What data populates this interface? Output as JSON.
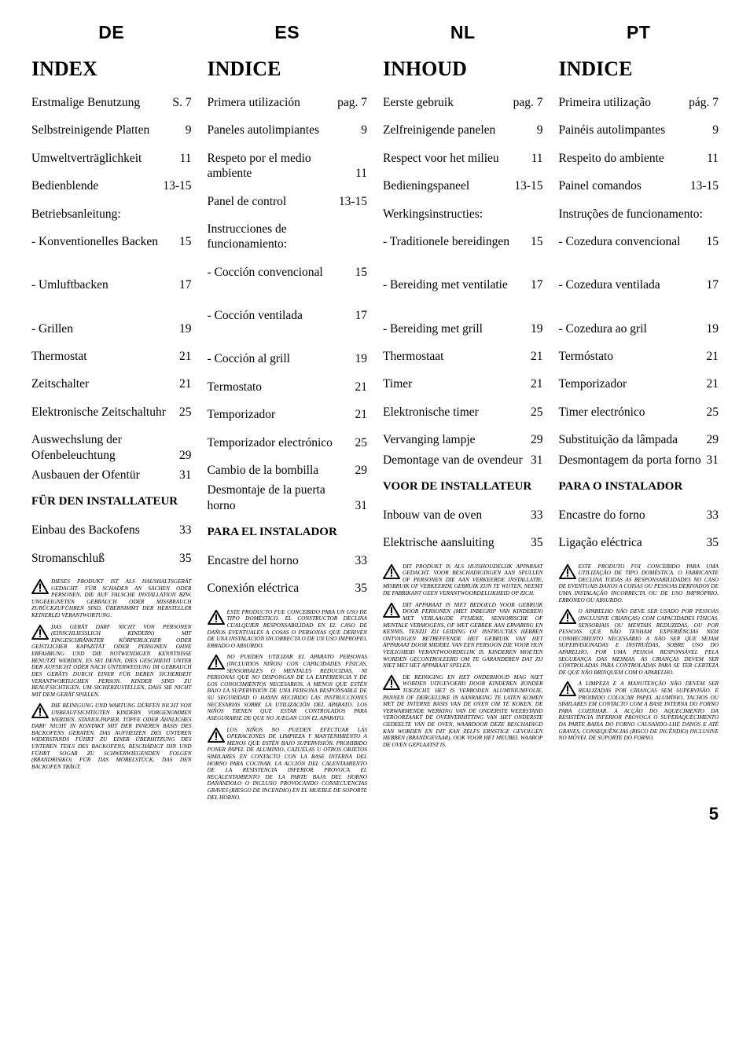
{
  "page_number": "5",
  "langs": {
    "de": {
      "code": "DE",
      "index": "INDEX"
    },
    "es": {
      "code": "ES",
      "index": "INDICE"
    },
    "nl": {
      "code": "NL",
      "index": "INHOUD"
    },
    "pt": {
      "code": "PT",
      "index": "INDICE"
    }
  },
  "rows": {
    "de": [
      {
        "l": "Erstmalige Benutzung",
        "p": "S. 7"
      },
      {
        "l": "Selbstreinigende Platten",
        "p": "9"
      },
      {
        "l": "Umweltverträglichkeit",
        "p": "11"
      },
      {
        "l": "Bedienblende",
        "p": "13-15"
      },
      {
        "l": "Betriebsanleitung:",
        "p": ""
      },
      {
        "l": "- Konventionelles Backen",
        "p": "15"
      },
      {
        "l": "- Umluftbacken",
        "p": "17"
      },
      {
        "l": "- Grillen",
        "p": "19"
      },
      {
        "l": "Thermostat",
        "p": "21"
      },
      {
        "l": "Zeitschalter",
        "p": "21"
      },
      {
        "l": "Elektronische Zeitschaltuhr",
        "p": "25"
      },
      {
        "l": "Auswechslung der Ofenbeleuchtung",
        "p": "29"
      },
      {
        "l": "Ausbauen der Ofentür",
        "p": "31"
      }
    ],
    "es": [
      {
        "l": "Primera utilización",
        "p": "pag. 7"
      },
      {
        "l": "Paneles autolimpiantes",
        "p": "9"
      },
      {
        "l": "Respeto por el medio ambiente",
        "p": "11"
      },
      {
        "l": "Panel de control",
        "p": "13-15"
      },
      {
        "l": "Instrucciones de funcionamiento:",
        "p": ""
      },
      {
        "l": "- Cocción convencional",
        "p": "15"
      },
      {
        "l": "- Cocción ventilada",
        "p": "17"
      },
      {
        "l": "- Cocción al grill",
        "p": "19"
      },
      {
        "l": "Termostato",
        "p": "21"
      },
      {
        "l": "Temporizador",
        "p": "21"
      },
      {
        "l": "Temporizador electrónico",
        "p": "25"
      },
      {
        "l": "Cambio de la bombilla",
        "p": "29"
      },
      {
        "l": "Desmontaje de la puerta horno",
        "p": "31"
      }
    ],
    "nl": [
      {
        "l": "Eerste gebruik",
        "p": "pag. 7"
      },
      {
        "l": "Zelfreinigende panelen",
        "p": "9"
      },
      {
        "l": "Respect voor het milieu",
        "p": "11"
      },
      {
        "l": "Bedieningspaneel",
        "p": "13-15"
      },
      {
        "l": "Werkingsinstructies:",
        "p": ""
      },
      {
        "l": "- Traditionele bereidingen",
        "p": "15"
      },
      {
        "l": "- Bereiding met ventilatie",
        "p": "17"
      },
      {
        "l": "- Bereiding met grill",
        "p": "19"
      },
      {
        "l": "Thermostaat",
        "p": "21"
      },
      {
        "l": "Timer",
        "p": "21"
      },
      {
        "l": "Elektronische timer",
        "p": "25"
      },
      {
        "l": "Vervanging lampje",
        "p": "29"
      },
      {
        "l": "Demontage van de ovendeur",
        "p": "31"
      }
    ],
    "pt": [
      {
        "l": "Primeira utilização",
        "p": "pág. 7"
      },
      {
        "l": "Painéis autolimpantes",
        "p": "9"
      },
      {
        "l": "Respeito do ambiente",
        "p": "11"
      },
      {
        "l": "Painel comandos",
        "p": "13-15"
      },
      {
        "l": "Instruções de funcionamento:",
        "p": ""
      },
      {
        "l": "- Cozedura convencional",
        "p": "15"
      },
      {
        "l": "- Cozedura ventilada",
        "p": "17"
      },
      {
        "l": "- Cozedura ao gril",
        "p": "19"
      },
      {
        "l": "Termóstato",
        "p": "21"
      },
      {
        "l": "Temporizador",
        "p": "21"
      },
      {
        "l": "Timer electrónico",
        "p": "25"
      },
      {
        "l": "Substituição da lâmpada",
        "p": "29"
      },
      {
        "l": "Desmontagem da porta forno",
        "p": "31"
      }
    ]
  },
  "installer": {
    "de": "FÜR DEN INSTALLATEUR",
    "es": "PARA EL INSTALADOR",
    "nl": "VOOR DE INSTALLATEUR",
    "pt": "PARA O INSTALADOR"
  },
  "after": {
    "de": [
      {
        "l": "Einbau des Backofens",
        "p": "33"
      },
      {
        "l": "Stromanschluß",
        "p": "35"
      }
    ],
    "es": [
      {
        "l": "Encastre del horno",
        "p": "33"
      },
      {
        "l": "Conexión eléctrica",
        "p": "35"
      }
    ],
    "nl": [
      {
        "l": "Inbouw van de oven",
        "p": "33"
      },
      {
        "l": "Elektrische aansluiting",
        "p": "35"
      }
    ],
    "pt": [
      {
        "l": "Encastre do forno",
        "p": "33"
      },
      {
        "l": "Ligação eléctrica",
        "p": "35"
      }
    ]
  },
  "warnings": {
    "de": [
      "DIESES PRODUKT IST ALS HAUSHALTSGERÄT GEDACHT. FÜR SCHADEN AN SACHEN ODER PERSONEN, DIE AUF FALSCHE INSTALLATION BZW. UNGEEIGNETEN GEBRAUCH ODER MISSBRAUCH ZURÜCKZUFÜHREN SIND, ÜBERNIMMT DER HERSTELLER KEINERLEI VERANTWORTUNG.",
      "DAS GERÄT DARF NICHT VON PERSONEN (EINSCHLIESSLICH KINDERN) MIT EINGESCHRÄNKTER KÖRPERLICHER ODER GEISTLICHER KAPAZITÄT ODER PERSONEN OHNE ERFAHRUNG UND DIE NOTWENDIGEN KENNTNISSE BENUTZT WERDEN, ES SEI DENN, DIES GESCHIEHT UNTER DER AUFSICHT ODER NACH UNTERWEISUNG IM GEBRAUCH DES GERÄTS DURCH EINER FÜR DEREN SICHERHEIT VERANTWORTLICHEN PERSON. KINDER SIND ZU BEAUFSICHTIGEN, UM SICHERZUSTELLEN, DASS SIE NICHT MIT DEM GERÄT SPIELEN.",
      "DIE REINIGUNG UND WARTUNG DÜRFEN NICHT VON UNBEAUFSICHTIGTEN KINDERN VORGENOMMEN WERDEN. STANIOLPAPIER, TÖPFE ODER ÄHNLICHES DARF NICHT IN KONTAKT MIT DER INNEREN BASIS DES BACKOFENS GERATEN. DAS AUFHEIZEN DES UNTEREN WIDERSTANDS FÜHRT ZU EINER ÜBERHITZUNG DES UNTEREN TEILS DES BACKOFENS, BESCHÄDIGT IHN UND FÜHRT SOGAR ZU SCHWERWIEGENDEN FOLGEN (BRANDRISIKO) FÜR DAS MÖBELSTÜCK, DAS DEN BACKOFEN TRÄGT."
    ],
    "es": [
      "ESTE PRODUCTO FUE CONCEBIDO PARA UN USO DE TIPO DOMÉSTICO. EL CONSTRUCTOR DECLINA CUALQUIER RESPONSABILIDAD EN EL CASO DE DAÑOS EVENTUALES A COSAS O PERSONAS QUE DERIVEN DE UNA INSTALACIÓN INCORRECTA O DE UN USO IMPROPIO, ERRADO O ABSURDO.",
      "NO PUEDEN UTILIZAR EL APARATO PERSONAS (INCLUIDOS NIÑOS) CON CAPACIDADES FÍSICAS, SENSORIALES O MENTALES REDUCIDAS, NI PERSONAS QUE NO DISPONGAN DE LA EXPERIENCIA Y DE LOS CONOCIMIENTOS NECESARIOS, A MENOS QUE ESTÉN BAJO LA SUPERVISIÓN DE UNA PERSONA RESPONSABLE DE SU SEGURIDAD O HAYAN RECIBIDO LAS INSTRUCCIONES NECESARIAS SOBRE LA UTILIZACIÓN DEL APARATO. LOS NIÑOS TIENEN QUE ESTAR CONTROLADOS PARA ASEGURARSE DE QUE NO JUEGAN CON EL APARATO.",
      "LOS NIÑOS NO PUEDEN EFECTUAR LAS OPERACIONES DE LIMPIEZA Y MANTENIMIENTO A MENOS QUE ESTÉN BAJO SUPERVISIÓN. PROHIBIDO PONER PAPEL DE ALUMINIO, CAZUELAS U OTROS OBJETOS SIMILARES EN CONTACTO CON LA BASE INTERNA DEL HORNO PARA COCINAR. LA ACCIÓN DEL CALENTAMIENTO DE LA RESISTENCIA INFERIOR PROVOCA EL RECALENTAMIENTO DE LA PARTE BAJA DEL HORNO DAÑÁNDOLO O INCLUSO PROVOCANDO CONSECUENCIAS GRAVES (RIESGO DE INCENDIO) EN EL MUEBLE DE SOPORTE DEL HORNO."
    ],
    "nl": [
      "DIT PRODUKT IS ALS HUISHOUDELIJK APPARAAT GEDACHT. VOOR BESCHADIGINGEN AAN SPULLEN OF PERSONEN DIE AAN VERKEERDE INSTALLATIE, MISBRUIK OF VERKEERDE GEBRUIK ZIJN TE WIJTEN, NEEMT DE FABRIKANT GEEN VERANTWOORDELIJKHEID OP ZICH.",
      "DIT APPARAAT IS NIET BEDOELD VOOR GEBRUIK DOOR PERSONEN (MET INBEGRIP VAN KINDEREN) MET VERLAAGDE FYSIEKE, SENSORISCHE OF MENTALE VERMOGENS, OF MET GEBREK AAN ERVARING EN KENNIS, TENZIJ ZIJ LEIDING OF INSTRUCTIES HEBBEN ONTVANGEN BETREFFENDE HET GEBRUIK VAN HET APPARAAT DOOR MIDDEL VAN EEN PERSOON DIE VOOR HUN VEILIGHEID VERANTWOORDELIJK IS. KINDEREN MOETEN WORDEN GECONTROLEERD OM TE GARANDEREN DAT ZIJ NIET MET HET APPARAAT SPELEN.",
      "DE REINIGING EN HET ONDERHOUD MAG NIET WORDEN UITGEVOERD DOOR KINDEREN ZONDER TOEZICHT. HET IS VERBODEN ALUMINIUMFOLIE, PANNEN OF DERGELIJKE IN AANRAKING TE LATEN KOMEN MET DE INTERNE BASIS VAN DE OVEN OM TE KOKEN. DE VERWARMENDE WERKING VAN DE ONDERSTE WEERSTAND VEROORZAAKT DE OVERVERHITTING VAN HET ONDERSTE GEDEELTE VAN DE OVEN, WAARDOOR DEZE BESCHADIGD KAN WORDEN EN DIT KAN ZELFS ERNSTIGE GEVOLGEN HEBBEN (BRANDGEVAAR), OOK VOOR HET MEUBEL WAAROP DE OVEN GEPLAATST IS."
    ],
    "pt": [
      "ESTE PRODUTO FOI CONCEBIDO PARA UMA UTILIZAÇÃO DE TIPO DOMÉSTICA. O FABRICANTE DECLINA TODAS AS RESPONSABILIDADES NO CASO DE EVENTUAIS DANOS A COISAS OU PESSOAS DERIVADOS DE UMA INSTALAÇÃO INCORRECTA OU DE USO IMPRÓPRIO, ERRÓNEO OU ABSURDO.",
      "O APARELHO NÃO DEVE SER USADO POR PESSOAS (INCLUSIVE CRIANÇAS) COM CAPACIDADES FÍSICAS, SENSORIAIS OU MENTAIS REDUZIDAS, OU POR PESSOAS QUE NÃO TENHAM EXPERIÊNCIAS NEM CONHECIMENTO NECESSÁRIO A NÃO SER QUE SEJAM SUPERVISIONADAS E INSTRUÍDAS, SOBRE USO DO APARELHO, POR UMA PESSOA RESPONSÁVEL PELA SEGURANÇA DAS MESMAS. AS CRIANÇAS DEVEM SER CONTROLADAS PARA CONTROLADAS PARA SE TER CERTEZA DE QUE NÃO BRINQUEM COM O APARELHO.",
      "A LIMPEZA E A MANUTENÇÃO NÃO DEVEM SER REALIZADAS POR CRIANÇAS SEM SUPERVISÃO. É PROIBIDO COLOCAR PAPEL ALUMÍNIO, TACHOS OU SIMILARES EM CONTACTO COM A BASE INTERNA DO FORNO PARA COZINHAR. A ACÇÃO DO AQUECIMENTO DA RESISTÊNCIA INFERIOR PROVOCA O SUPERAQUECIMENTO DA PARTE BAIXA DO FORNO CAUSANDO-LHE DANOS E ATÉ GRAVES, CONSEQUÊNCIAS (RISCO DE INCÊNDIO) INCLUSIVE NO MÓVEL DE SUPORTE DO FORNO."
    ]
  },
  "row_spacing_overrides": {
    "5": 36,
    "6": 36,
    "11": 6
  }
}
